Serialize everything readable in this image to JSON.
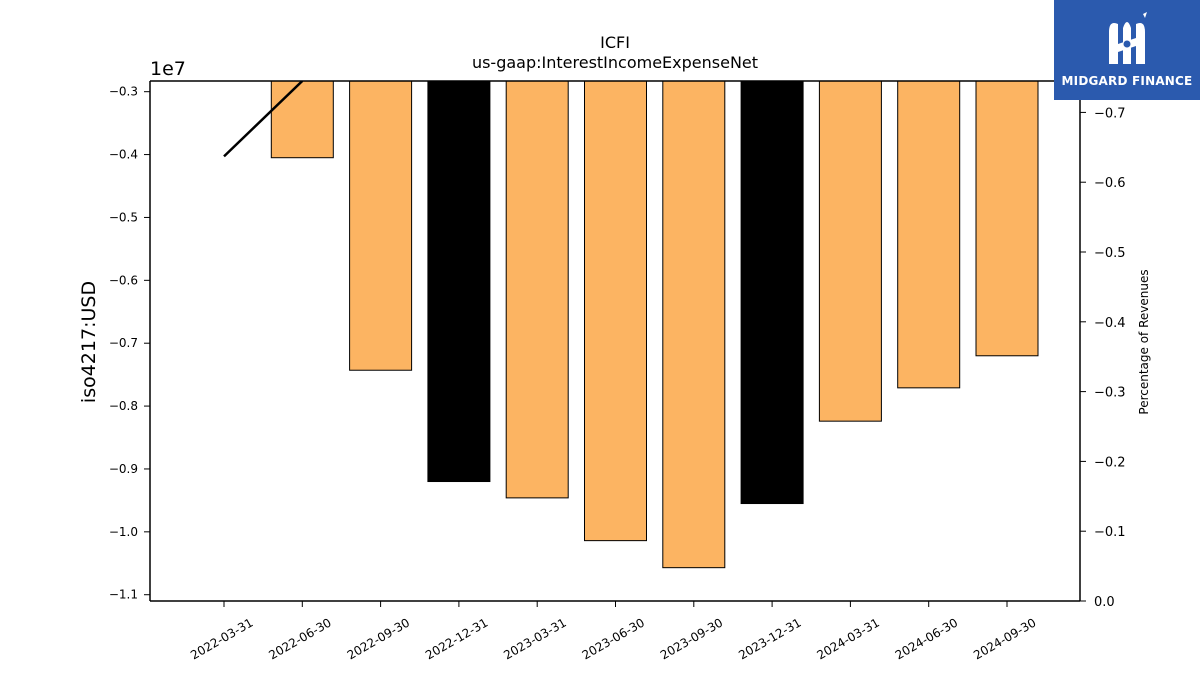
{
  "chart_data": {
    "type": "bar",
    "title": "ICFI",
    "subtitle": "us-gaap:InterestIncomeExpenseNet",
    "ylabel": "iso4217:USD",
    "y2label": "Percentage of Revenues",
    "y_offset_label": "1e7",
    "categories": [
      "2022-03-31",
      "2022-06-30",
      "2022-09-30",
      "2022-12-31",
      "2023-03-31",
      "2023-06-30",
      "2023-09-30",
      "2023-12-31",
      "2024-03-31",
      "2024-06-30",
      "2024-09-30"
    ],
    "values": [
      null,
      -4050000,
      -7430000,
      -9200000,
      -9460000,
      -10140000,
      -10570000,
      -9550000,
      -8240000,
      -7710000,
      -7200000
    ],
    "bar_colors": [
      null,
      "#fcb462",
      "#fcb462",
      "#000000",
      "#fcb462",
      "#fcb462",
      "#fcb462",
      "#000000",
      "#fcb462",
      "#fcb462",
      "#fcb462"
    ],
    "ylim": [
      -11100000,
      -2830000
    ],
    "yticks": [
      -3000000,
      -4000000,
      -5000000,
      -6000000,
      -7000000,
      -8000000,
      -9000000,
      -10000000,
      -11000000
    ],
    "ytick_labels": [
      "−0.3",
      "−0.4",
      "−0.5",
      "−0.6",
      "−0.7",
      "−0.8",
      "−0.9",
      "−1.0",
      "−1.1"
    ],
    "y2lim": [
      0.0,
      -0.745
    ],
    "y2ticks": [
      -0.7,
      -0.6,
      -0.5,
      -0.4,
      -0.3,
      -0.2,
      -0.1,
      0.0
    ],
    "y2tick_labels": [
      "−0.7",
      "−0.6",
      "−0.5",
      "−0.4",
      "−0.3",
      "−0.2",
      "−0.1",
      "0.0"
    ],
    "line_series": {
      "axis": "y2",
      "color": "#000000",
      "points": [
        {
          "x": "2022-03-31",
          "y": -0.637
        },
        {
          "x": "2022-06-30",
          "y": -0.745
        }
      ]
    }
  },
  "logo": {
    "text": "MIDGARD FINANCE"
  }
}
